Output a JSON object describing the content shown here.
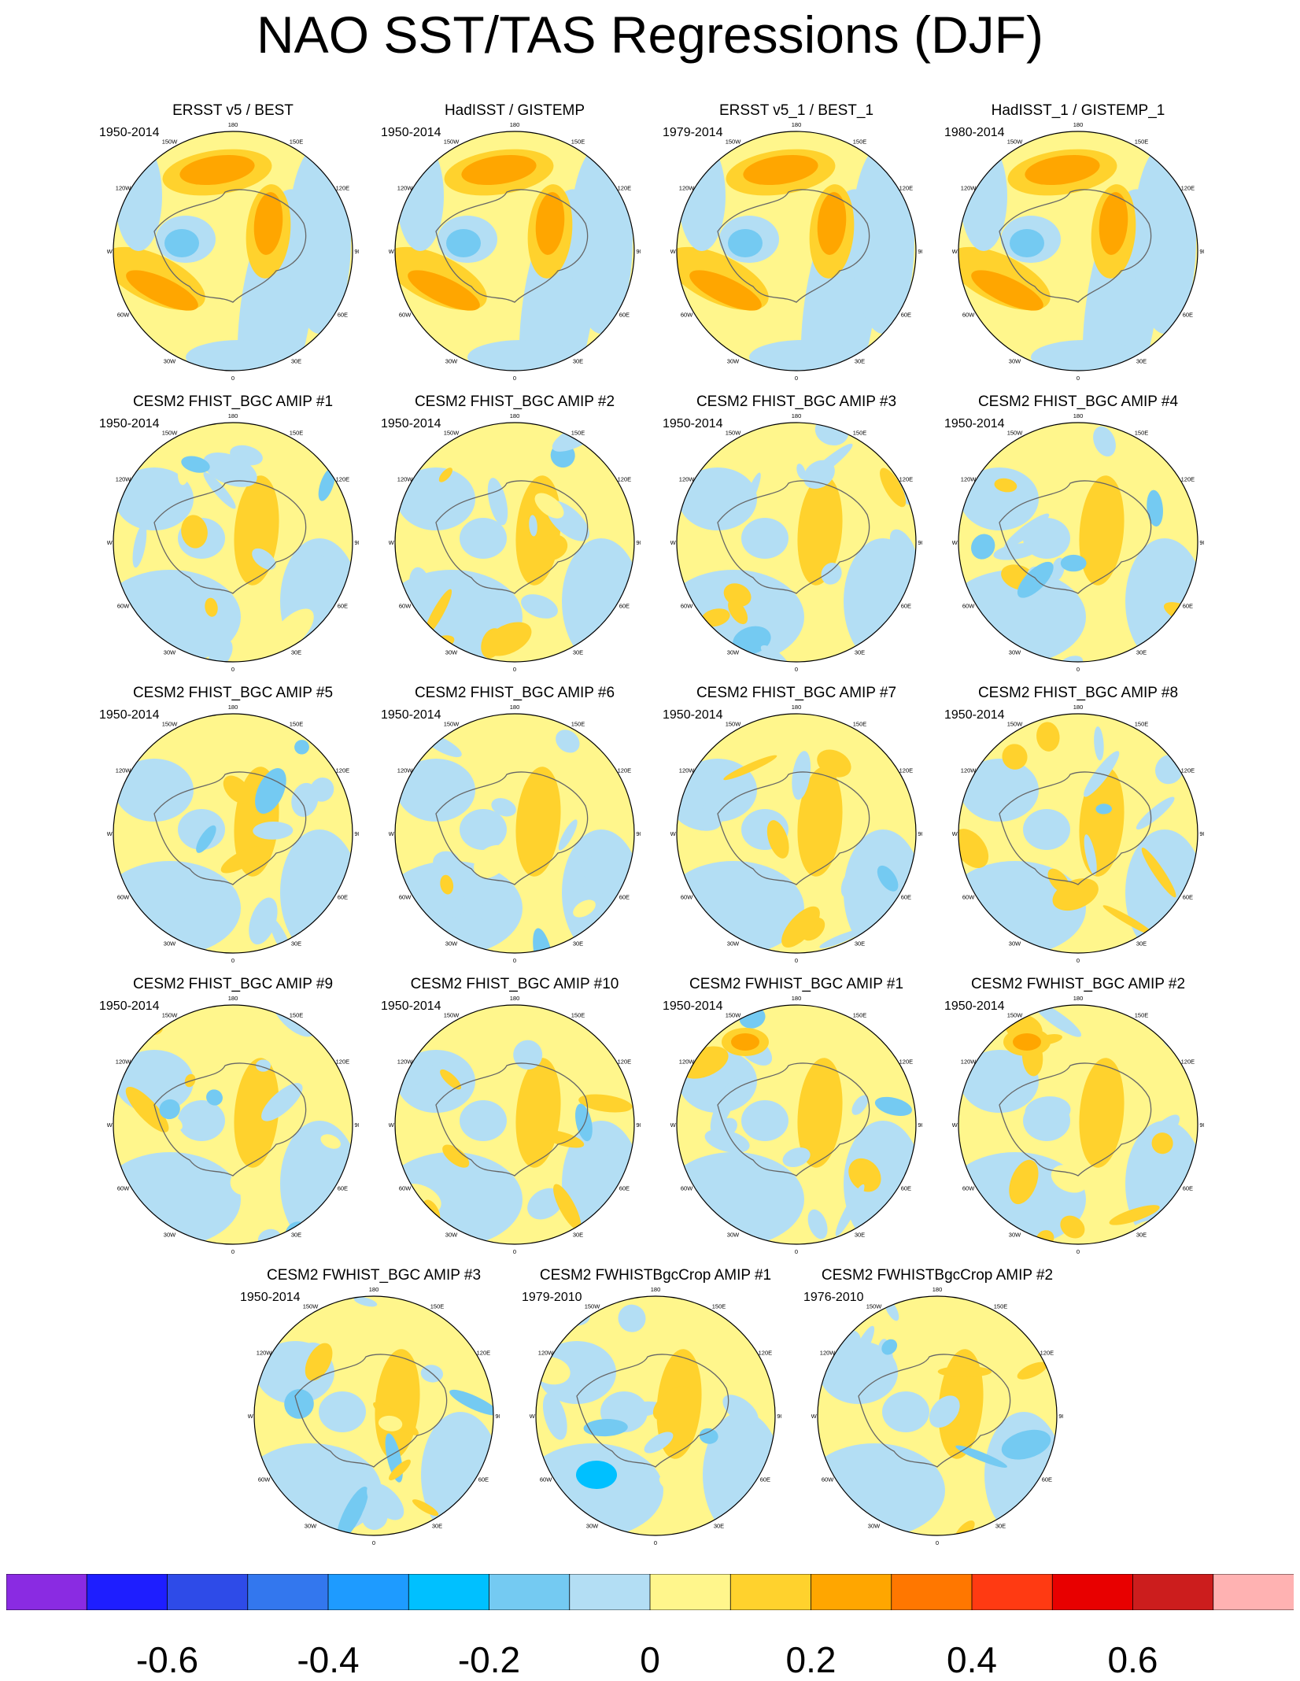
{
  "title": "NAO SST/TAS Regressions (DJF)",
  "polar_labels": [
    "180",
    "150E",
    "120E",
    "90E",
    "60E",
    "30E",
    "0",
    "30W",
    "60W",
    "90W",
    "120W",
    "150W"
  ],
  "panels": [
    {
      "title": "ERSST v5 / BEST",
      "years": "1950-2014",
      "pattern": "obs"
    },
    {
      "title": "HadISST / GISTEMP",
      "years": "1950-2014",
      "pattern": "obs"
    },
    {
      "title": "ERSST v5_1 / BEST_1",
      "years": "1979-2014",
      "pattern": "obs"
    },
    {
      "title": "HadISST_1 / GISTEMP_1",
      "years": "1980-2014",
      "pattern": "obs"
    },
    {
      "title": "CESM2 FHIST_BGC AMIP #1",
      "years": "1950-2014",
      "pattern": "model"
    },
    {
      "title": "CESM2 FHIST_BGC AMIP #2",
      "years": "1950-2014",
      "pattern": "model"
    },
    {
      "title": "CESM2 FHIST_BGC AMIP #3",
      "years": "1950-2014",
      "pattern": "model"
    },
    {
      "title": "CESM2 FHIST_BGC AMIP #4",
      "years": "1950-2014",
      "pattern": "model"
    },
    {
      "title": "CESM2 FHIST_BGC AMIP #5",
      "years": "1950-2014",
      "pattern": "model"
    },
    {
      "title": "CESM2 FHIST_BGC AMIP #6",
      "years": "1950-2014",
      "pattern": "model"
    },
    {
      "title": "CESM2 FHIST_BGC AMIP #7",
      "years": "1950-2014",
      "pattern": "model"
    },
    {
      "title": "CESM2 FHIST_BGC AMIP #8",
      "years": "1950-2014",
      "pattern": "model"
    },
    {
      "title": "CESM2 FHIST_BGC AMIP #9",
      "years": "1950-2014",
      "pattern": "model"
    },
    {
      "title": "CESM2 FHIST_BGC AMIP #10",
      "years": "1950-2014",
      "pattern": "model"
    },
    {
      "title": "CESM2 FWHIST_BGC AMIP #1",
      "years": "1950-2014",
      "pattern": "model"
    },
    {
      "title": "CESM2 FWHIST_BGC AMIP #2",
      "years": "1950-2014",
      "pattern": "model"
    },
    {
      "title": "CESM2 FWHIST_BGC AMIP #3",
      "years": "1950-2014",
      "pattern": "model"
    },
    {
      "title": "CESM2 FWHISTBgcCrop AMIP #1",
      "years": "1979-2010",
      "pattern": "model"
    },
    {
      "title": "CESM2 FWHISTBgcCrop AMIP #2",
      "years": "1976-2010",
      "pattern": "model"
    }
  ],
  "colorbar": {
    "colors": [
      "#8A2BE2",
      "#1E1EFF",
      "#2E4BE8",
      "#3377EE",
      "#1E9BFF",
      "#00C0FF",
      "#74CAF2",
      "#B3DEF4",
      "#FFF68C",
      "#FFD22D",
      "#FFA600",
      "#FF7700",
      "#FF3A12",
      "#E80000",
      "#CC1D1D",
      "#FFB2B2"
    ],
    "tick_labels": [
      "-0.6",
      "-0.4",
      "-0.2",
      "0",
      "0.2",
      "0.4",
      "0.6"
    ]
  }
}
